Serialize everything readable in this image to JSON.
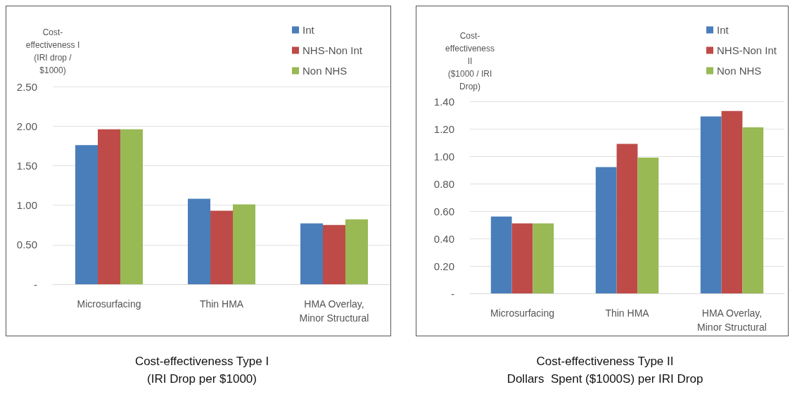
{
  "chart_data": [
    {
      "type": "bar",
      "title": "Cost-effectiveness Type I",
      "subtitle": "(IRI Drop per $1000)",
      "ylabel": "Cost-\neffectiveness I\n(IRI drop /\n$1000)",
      "categories": [
        "Microsurfacing",
        "Thin HMA",
        "HMA Overlay,\nMinor Structural"
      ],
      "series": [
        {
          "name": "Int",
          "color": "#4a7ebb",
          "values": [
            1.76,
            1.08,
            0.77
          ]
        },
        {
          "name": "NHS-Non Int",
          "color": "#be4b48",
          "values": [
            1.96,
            0.93,
            0.75
          ]
        },
        {
          "name": "Non NHS",
          "color": "#98b954",
          "values": [
            1.96,
            1.01,
            0.82
          ]
        }
      ],
      "ylim": [
        0,
        2.5
      ],
      "yticks": [
        {
          "value": 0,
          "label": "-"
        },
        {
          "value": 0.5,
          "label": "0.50"
        },
        {
          "value": 1,
          "label": "1.00"
        },
        {
          "value": 1.5,
          "label": "1.50"
        },
        {
          "value": 2,
          "label": "2.00"
        },
        {
          "value": 2.5,
          "label": "2.50"
        }
      ],
      "grid": "y",
      "legend": "top right"
    },
    {
      "type": "bar",
      "title": "Cost-effectiveness Type II",
      "subtitle": "Dollars  Spent ($1000S) per IRI Drop",
      "ylabel": "Cost-\neffectiveness\nII\n($1000 / IRI\nDrop)",
      "categories": [
        "Microsurfacing",
        "Thin HMA",
        "HMA Overlay,\nMinor Structural"
      ],
      "series": [
        {
          "name": "Int",
          "color": "#4a7ebb",
          "values": [
            0.56,
            0.92,
            1.29
          ]
        },
        {
          "name": "NHS-Non Int",
          "color": "#be4b48",
          "values": [
            0.51,
            1.09,
            1.33
          ]
        },
        {
          "name": "Non NHS",
          "color": "#98b954",
          "values": [
            0.51,
            0.99,
            1.21
          ]
        }
      ],
      "ylim": [
        0,
        1.4
      ],
      "yticks": [
        {
          "value": 0,
          "label": "-"
        },
        {
          "value": 0.2,
          "label": "0.20"
        },
        {
          "value": 0.4,
          "label": "0.40"
        },
        {
          "value": 0.6,
          "label": "0.60"
        },
        {
          "value": 0.8,
          "label": "0.80"
        },
        {
          "value": 1,
          "label": "1.00"
        },
        {
          "value": 1.2,
          "label": "1.20"
        },
        {
          "value": 1.4,
          "label": "1.40"
        }
      ],
      "grid": "y",
      "legend": "top right"
    }
  ]
}
